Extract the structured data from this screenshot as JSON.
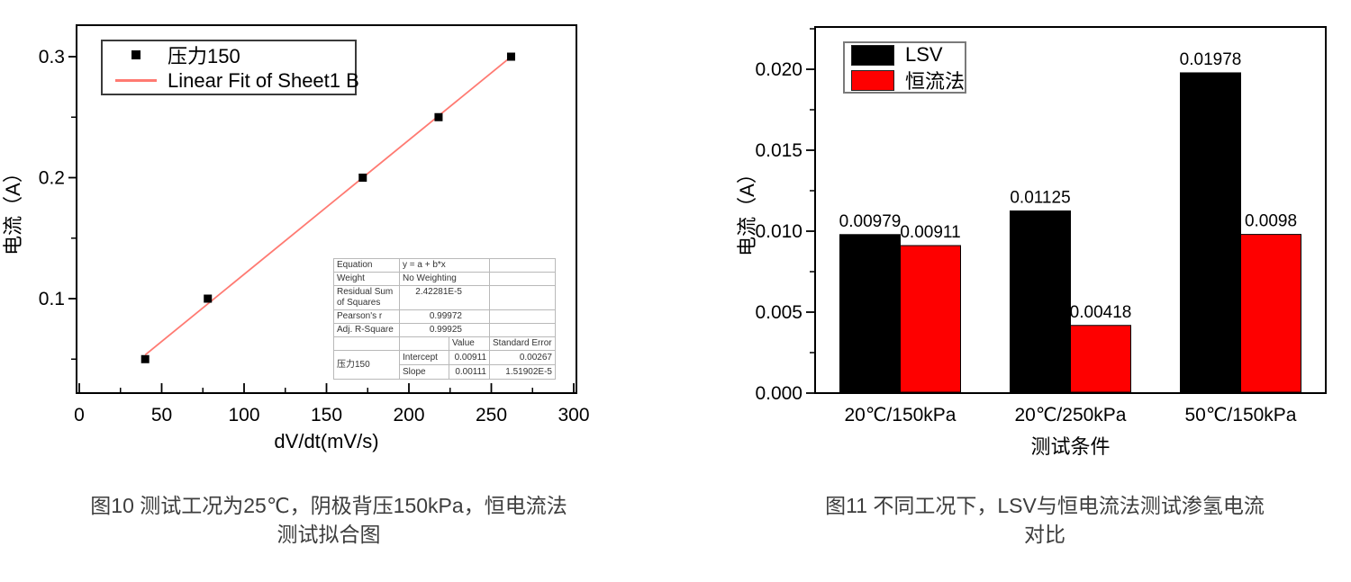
{
  "fig10": {
    "caption": {
      "line1": "图10 测试工况为25℃，阴极背压150kPa，恒电流法",
      "line2": "测试拟合图"
    },
    "legend": [
      {
        "label": "压力150",
        "marker": "square",
        "color": "#000000"
      },
      {
        "label": "Linear Fit of Sheet1 B",
        "marker": "line",
        "color": "#ff7a72"
      }
    ],
    "stats": {
      "rows": [
        {
          "label": "Equation",
          "value": "y = a + b*x",
          "numeric": false
        },
        {
          "label": "Weight",
          "value": "No Weighting",
          "numeric": false
        },
        {
          "label": "Residual Sum of Squares",
          "value": "2.42281E-5",
          "numeric": true
        },
        {
          "label": "Pearson's r",
          "value": "0.99972",
          "numeric": true
        },
        {
          "label": "Adj. R-Square",
          "value": "0.99925",
          "numeric": true
        }
      ],
      "value_header": "Value",
      "stderr_header": "Standard Error",
      "group_label": "压力150",
      "params": [
        {
          "name": "Intercept",
          "value": "0.00911",
          "stderr": "0.00267"
        },
        {
          "name": "Slope",
          "value": "0.00111",
          "stderr": "1.51902E-5"
        }
      ]
    },
    "chart_data": {
      "type": "scatter",
      "title": "",
      "xlabel": "dV/dt(mV/s)",
      "ylabel": "电流（A）",
      "xlim": [
        -2,
        302
      ],
      "ylim": [
        0.022,
        0.326
      ],
      "x_major_ticks": [
        0,
        50,
        100,
        150,
        200,
        250,
        300
      ],
      "x_minor_ticks": [
        25,
        75,
        125,
        175,
        225,
        275
      ],
      "y_major_ticks": [
        0.1,
        0.2,
        0.3
      ],
      "y_major_labels": [
        "0.1",
        "0.2",
        "0.3"
      ],
      "y_minor_ticks": [
        0.05,
        0.15,
        0.25
      ],
      "grid": false,
      "legend_position": "top-left",
      "series": [
        {
          "name": "压力150",
          "type": "scatter",
          "marker": "square",
          "color": "#000000",
          "x": [
            40,
            78,
            172,
            218,
            262
          ],
          "y": [
            0.05,
            0.1,
            0.2,
            0.25,
            0.3
          ]
        },
        {
          "name": "Linear Fit of Sheet1 B",
          "type": "line",
          "color": "#ff7a72",
          "fit_intercept": 0.00911,
          "fit_slope": 0.00111,
          "x_start": 40,
          "x_end": 262
        }
      ]
    }
  },
  "fig11": {
    "caption": {
      "line1": "图11 不同工况下，LSV与恒电流法测试渗氢电流",
      "line2": "对比"
    },
    "legend": [
      {
        "label": "LSV",
        "color": "#000000"
      },
      {
        "label": "恒流法",
        "color": "#fe0000"
      }
    ],
    "chart_data": {
      "type": "bar",
      "categories": [
        "20℃/150kPa",
        "20℃/250kPa",
        "50℃/150kPa"
      ],
      "series": [
        {
          "name": "LSV",
          "color": "#000000",
          "values": [
            0.00979,
            0.01125,
            0.01978
          ]
        },
        {
          "name": "恒流法",
          "color": "#fe0000",
          "values": [
            0.00911,
            0.00418,
            0.0098
          ]
        }
      ],
      "value_labels": [
        [
          "0.00979",
          "0.01125",
          "0.01978"
        ],
        [
          "0.00911",
          "0.00418",
          "0.0098"
        ]
      ],
      "xlabel": "测试条件",
      "ylabel": "电流（A）",
      "ylim": [
        0,
        0.0226
      ],
      "y_major_ticks": [
        0,
        0.005,
        0.01,
        0.015,
        0.02
      ],
      "y_tick_labels": [
        "0.000",
        "0.005",
        "0.010",
        "0.015",
        "0.020"
      ],
      "y_minor_step": 0.0025,
      "grid": false,
      "legend_position": "top-left"
    }
  }
}
